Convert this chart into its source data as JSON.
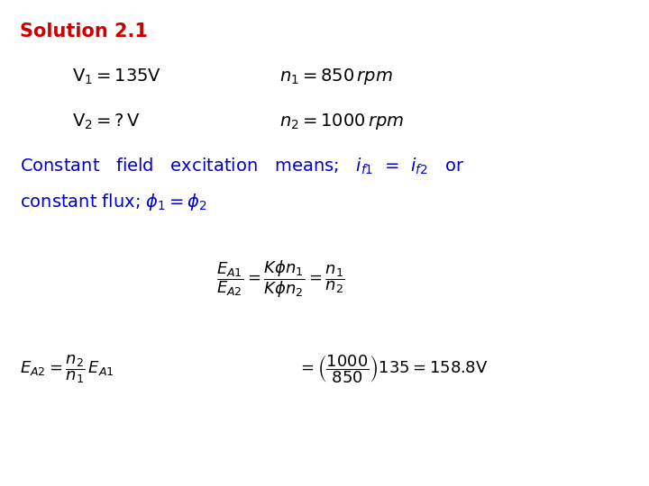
{
  "title": "Solution 2.1",
  "title_color": "#cc0000",
  "title_fontsize": 15,
  "background_color": "#ffffff",
  "blue_color": "#0000cc",
  "black_color": "#000000",
  "red_color": "#cc0000"
}
